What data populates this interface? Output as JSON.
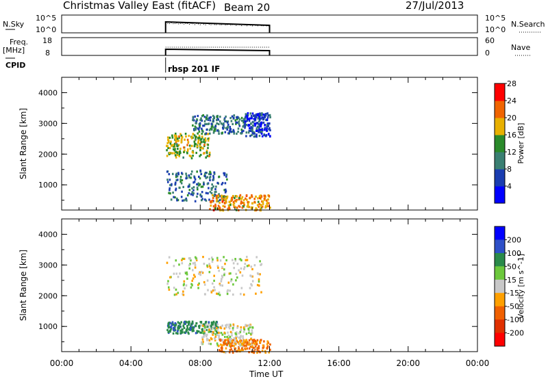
{
  "header": {
    "station": "Christmas Valley East (fitACF)",
    "beam": "Beam 20",
    "date": "27/Jul/2013"
  },
  "noise_panel": {
    "left_label": "N.Sky",
    "left_ticks": [
      "10^5",
      "10^0"
    ],
    "right_ticks": [
      "10^5",
      "10^0"
    ],
    "right_legend": "N.Search"
  },
  "freq_panel": {
    "left_label_1": "Freq.",
    "left_label_2": "[MHz]",
    "left_ticks": [
      "18",
      "8"
    ],
    "right_ticks": [
      "60",
      "0"
    ],
    "right_legend": "Nave"
  },
  "cpid": {
    "label": "CPID",
    "value": "rbsp 201 IF"
  },
  "chart_data": [
    {
      "type": "heatmap",
      "ylabel": "Slant Range [km]",
      "ytick_labels": [
        "1000",
        "2000",
        "3000",
        "4000"
      ],
      "ylim": [
        180,
        4500
      ],
      "xlim": [
        0,
        24
      ],
      "data_window_hours": [
        6,
        12
      ],
      "colorbar_label": "Power [dB]",
      "colorbar_ticks": [
        "4",
        "8",
        "12",
        "16",
        "20",
        "24",
        "28"
      ],
      "colors": [
        "#0000ff",
        "#1a3db0",
        "#3a7f72",
        "#2a8a2a",
        "#e8b000",
        "#f06400",
        "#ff0000"
      ],
      "echo_regions": [
        {
          "x": [
            6.0,
            8.5
          ],
          "y": [
            1900,
            2700
          ],
          "level": 16
        },
        {
          "x": [
            7.5,
            10.5
          ],
          "y": [
            2700,
            3300
          ],
          "level": 8
        },
        {
          "x": [
            10.5,
            12.0
          ],
          "y": [
            2600,
            3400
          ],
          "level": 4
        },
        {
          "x": [
            6.0,
            9.5
          ],
          "y": [
            500,
            1500
          ],
          "level": 8
        },
        {
          "x": [
            8.5,
            12.0
          ],
          "y": [
            180,
            700
          ],
          "level": 20
        }
      ]
    },
    {
      "type": "heatmap",
      "ylabel": "Slant Range [km]",
      "ytick_labels": [
        "1000",
        "2000",
        "3000",
        "4000"
      ],
      "ylim": [
        180,
        4500
      ],
      "xlim": [
        0,
        24
      ],
      "data_window_hours": [
        6,
        12
      ],
      "colorbar_label": "Velocity [m s^-1]",
      "colorbar_ticks": [
        "200",
        "100",
        "50",
        "15",
        "-15",
        "-50",
        "-100",
        "-200"
      ],
      "colors": [
        "#0000ff",
        "#2e50c8",
        "#2a8a4a",
        "#6cc83c",
        "#c8c8c8",
        "#ffa000",
        "#f06000",
        "#e03000",
        "#ff0000"
      ],
      "echo_regions": [
        {
          "x": [
            6.0,
            11.5
          ],
          "y": [
            2000,
            3300
          ],
          "velocity": 0
        },
        {
          "x": [
            6.0,
            9.0
          ],
          "y": [
            800,
            1200
          ],
          "velocity": 60
        },
        {
          "x": [
            8.0,
            11.0
          ],
          "y": [
            400,
            1100
          ],
          "velocity": 0
        },
        {
          "x": [
            9.0,
            12.0
          ],
          "y": [
            180,
            600
          ],
          "velocity": -40
        }
      ]
    }
  ],
  "xaxis": {
    "tick_labels": [
      "00:00",
      "04:00",
      "08:00",
      "12:00",
      "16:00",
      "20:00",
      "00:00"
    ],
    "label": "Time UT"
  }
}
